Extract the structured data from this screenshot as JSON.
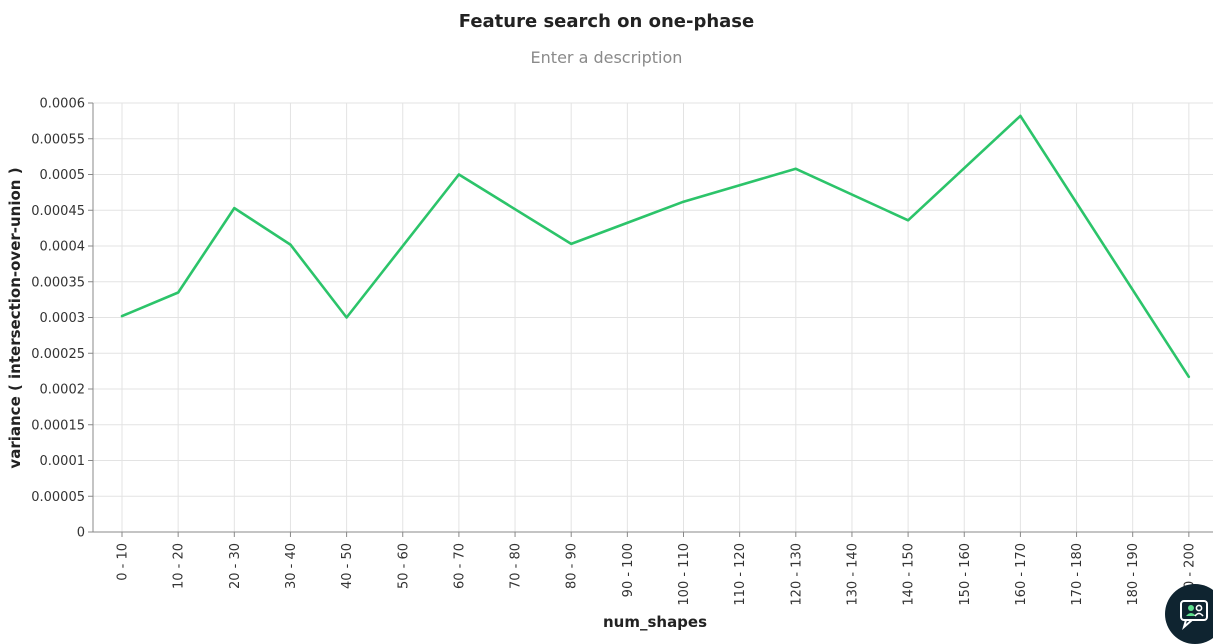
{
  "header": {
    "title": "Feature search on one-phase",
    "subtitle": "Enter a description"
  },
  "chat_button": {
    "icon": "chat-support-icon"
  },
  "chart_data": {
    "type": "line",
    "title": "Feature search on one-phase",
    "subtitle": "Enter a description",
    "xlabel": "num_shapes",
    "ylabel": "variance ( intersection-over-union )",
    "categories": [
      "0 - 10",
      "10 - 20",
      "20 - 30",
      "30 - 40",
      "40 - 50",
      "50 - 60",
      "60 - 70",
      "70 - 80",
      "80 - 90",
      "90 - 100",
      "100 - 110",
      "110 - 120",
      "120 - 130",
      "130 - 140",
      "140 - 150",
      "150 - 160",
      "160 - 170",
      "170 - 180",
      "180 - 190",
      "190 - 200"
    ],
    "series": [
      {
        "color": "#2cc46a",
        "values": [
          0.000302,
          0.000335,
          0.000453,
          0.000402,
          0.0003,
          null,
          0.0005,
          null,
          0.000403,
          null,
          0.000462,
          null,
          0.000508,
          null,
          0.000436,
          null,
          0.000582,
          null,
          null,
          0.000217
        ]
      }
    ],
    "yticks": [
      "0",
      "0.00005",
      "0.0001",
      "0.00015",
      "0.0002",
      "0.00025",
      "0.0003",
      "0.00035",
      "0.0004",
      "0.00045",
      "0.0005",
      "0.00055",
      "0.0006"
    ],
    "ylim": [
      0,
      0.0006
    ],
    "grid": true,
    "legend": "none"
  }
}
